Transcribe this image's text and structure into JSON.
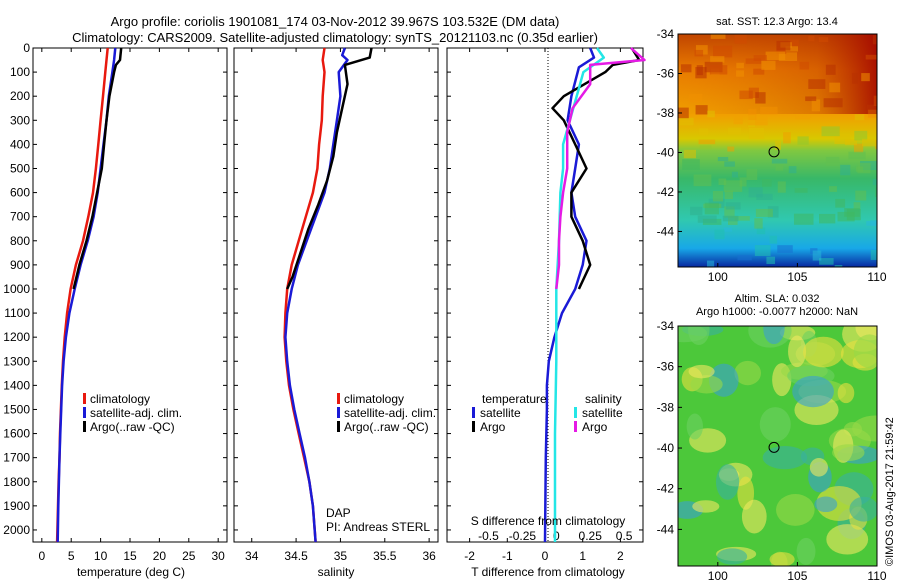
{
  "header": {
    "title_line1": "Argo profile: coriolis 1901081_174 03-Nov-2012 39.967S 103.532E (DM data)",
    "title_line2": "Climatology: CARS2009. Satellite-adjusted climatology: synTS_20121103.nc (0.35d earlier)"
  },
  "colors": {
    "climatology": "#e8190f",
    "satellite": "#1a1ad6",
    "argo": "#000000",
    "salinity_satellite": "#23e6e6",
    "salinity_argo": "#e51ae5"
  },
  "depth_axis": {
    "ylim": [
      0,
      2050
    ],
    "ticks": [
      "0",
      "100",
      "200",
      "300",
      "400",
      "500",
      "600",
      "700",
      "800",
      "900",
      "1000",
      "1100",
      "1200",
      "1300",
      "1400",
      "1500",
      "1600",
      "1700",
      "1800",
      "1900",
      "2000"
    ]
  },
  "chart_data": [
    {
      "id": "temperature",
      "type": "line",
      "xlabel": "temperature (deg C)",
      "xlim": [
        -1.5,
        31.5
      ],
      "xticks": [
        "0",
        "5",
        "10",
        "15",
        "20",
        "25",
        "30"
      ],
      "legend": {
        "placement": "bottom-right",
        "entries": [
          "climatology",
          "satellite-adj. clim.",
          "Argo(..raw -QC)"
        ]
      },
      "series": [
        {
          "name": "climatology",
          "color": "#e8190f",
          "points": [
            [
              11.2,
              0
            ],
            [
              11.0,
              50
            ],
            [
              10.8,
              100
            ],
            [
              10.4,
              200
            ],
            [
              10.0,
              300
            ],
            [
              9.6,
              400
            ],
            [
              9.2,
              500
            ],
            [
              8.7,
              600
            ],
            [
              7.9,
              700
            ],
            [
              7.0,
              800
            ],
            [
              5.8,
              900
            ],
            [
              4.9,
              1000
            ],
            [
              4.3,
              1100
            ],
            [
              3.9,
              1200
            ],
            [
              3.6,
              1300
            ],
            [
              3.4,
              1400
            ],
            [
              3.25,
              1500
            ],
            [
              3.1,
              1600
            ],
            [
              3.0,
              1700
            ],
            [
              2.85,
              1800
            ],
            [
              2.75,
              1900
            ],
            [
              2.6,
              2050
            ]
          ]
        },
        {
          "name": "satellite-adj. clim.",
          "color": "#1a1ad6",
          "points": [
            [
              12.5,
              0
            ],
            [
              12.3,
              50
            ],
            [
              12.0,
              100
            ],
            [
              11.4,
              200
            ],
            [
              11.0,
              300
            ],
            [
              10.5,
              400
            ],
            [
              10.0,
              500
            ],
            [
              9.5,
              600
            ],
            [
              8.8,
              700
            ],
            [
              7.8,
              800
            ],
            [
              6.6,
              900
            ],
            [
              5.6,
              1000
            ],
            [
              4.7,
              1100
            ],
            [
              4.1,
              1200
            ],
            [
              3.7,
              1300
            ],
            [
              3.45,
              1400
            ],
            [
              3.3,
              1500
            ],
            [
              3.15,
              1600
            ],
            [
              3.0,
              1700
            ],
            [
              2.9,
              1800
            ],
            [
              2.8,
              1900
            ],
            [
              2.7,
              2050
            ]
          ]
        },
        {
          "name": "Argo(..raw -QC)",
          "color": "#000000",
          "points": [
            [
              13.5,
              0
            ],
            [
              13.3,
              50
            ],
            [
              12.6,
              70
            ],
            [
              12.3,
              100
            ],
            [
              11.5,
              200
            ],
            [
              11.0,
              300
            ],
            [
              10.6,
              400
            ],
            [
              10.2,
              500
            ],
            [
              9.4,
              600
            ],
            [
              8.6,
              700
            ],
            [
              7.6,
              800
            ],
            [
              6.4,
              900
            ],
            [
              5.4,
              1000
            ]
          ]
        }
      ]
    },
    {
      "id": "salinity",
      "type": "line",
      "xlabel": "salinity",
      "xlim": [
        33.8,
        36.1
      ],
      "xticks": [
        "34",
        "34.5",
        "35",
        "35.5",
        "36"
      ],
      "legend": {
        "placement": "bottom-right",
        "entries": [
          "climatology",
          "satellite-adj. clim.",
          "Argo(..raw -QC)"
        ]
      },
      "annotations": [
        "DAP",
        "PI: Andreas STERL"
      ],
      "series": [
        {
          "name": "climatology",
          "color": "#e8190f",
          "points": [
            [
              34.82,
              0
            ],
            [
              34.8,
              50
            ],
            [
              34.82,
              100
            ],
            [
              34.8,
              200
            ],
            [
              34.79,
              300
            ],
            [
              34.76,
              400
            ],
            [
              34.74,
              500
            ],
            [
              34.69,
              600
            ],
            [
              34.61,
              700
            ],
            [
              34.53,
              800
            ],
            [
              34.45,
              900
            ],
            [
              34.4,
              1000
            ],
            [
              34.38,
              1100
            ],
            [
              34.37,
              1200
            ],
            [
              34.39,
              1300
            ],
            [
              34.42,
              1400
            ],
            [
              34.47,
              1500
            ],
            [
              34.53,
              1600
            ],
            [
              34.59,
              1700
            ],
            [
              34.65,
              1800
            ],
            [
              34.69,
              1900
            ],
            [
              34.72,
              2050
            ]
          ]
        },
        {
          "name": "satellite-adj. clim.",
          "color": "#1a1ad6",
          "points": [
            [
              35.05,
              0
            ],
            [
              35.02,
              30
            ],
            [
              35.08,
              50
            ],
            [
              34.98,
              100
            ],
            [
              35.0,
              200
            ],
            [
              34.96,
              300
            ],
            [
              34.92,
              400
            ],
            [
              34.88,
              500
            ],
            [
              34.82,
              600
            ],
            [
              34.72,
              700
            ],
            [
              34.62,
              800
            ],
            [
              34.52,
              900
            ],
            [
              34.45,
              1000
            ],
            [
              34.4,
              1100
            ],
            [
              34.38,
              1200
            ],
            [
              34.4,
              1300
            ],
            [
              34.43,
              1400
            ],
            [
              34.48,
              1500
            ],
            [
              34.54,
              1600
            ],
            [
              34.6,
              1700
            ],
            [
              34.65,
              1800
            ],
            [
              34.69,
              1900
            ],
            [
              34.72,
              2050
            ]
          ]
        },
        {
          "name": "Argo(..raw -QC)",
          "color": "#000000",
          "points": [
            [
              35.35,
              0
            ],
            [
              35.33,
              40
            ],
            [
              35.05,
              70
            ],
            [
              35.08,
              150
            ],
            [
              35.02,
              250
            ],
            [
              34.96,
              350
            ],
            [
              34.92,
              450
            ],
            [
              34.85,
              550
            ],
            [
              34.75,
              650
            ],
            [
              34.64,
              750
            ],
            [
              34.55,
              850
            ],
            [
              34.46,
              950
            ],
            [
              34.4,
              1000
            ]
          ]
        }
      ]
    },
    {
      "id": "difference",
      "type": "line",
      "xlabel": "T difference from climatology",
      "xlabel_top": "S difference from climatology",
      "xlim": [
        -2.6,
        2.6
      ],
      "xticks": [
        "-2",
        "-1",
        "0",
        "1",
        "2"
      ],
      "xticks_top": [
        "-0.5",
        "-0.25",
        "0",
        "0.25",
        "0.5"
      ],
      "legend": {
        "placement": "bottom",
        "headers": [
          "temperature",
          "salinity"
        ],
        "entries": [
          "satellite",
          "Argo",
          "satellite",
          "Argo"
        ]
      },
      "series": [
        {
          "name": "satellite",
          "quantity": "temperature",
          "color": "#1a1ad6",
          "points": [
            [
              1.2,
              0
            ],
            [
              1.3,
              40
            ],
            [
              0.9,
              80
            ],
            [
              0.7,
              200
            ],
            [
              0.6,
              300
            ],
            [
              0.9,
              400
            ],
            [
              0.8,
              500
            ],
            [
              0.7,
              600
            ],
            [
              0.8,
              700
            ],
            [
              1.1,
              800
            ],
            [
              1.0,
              900
            ],
            [
              0.8,
              1000
            ],
            [
              0.45,
              1100
            ],
            [
              0.25,
              1200
            ],
            [
              0.1,
              1300
            ],
            [
              0.05,
              1400
            ],
            [
              0.05,
              1500
            ],
            [
              0.02,
              1700
            ],
            [
              0.0,
              2050
            ]
          ]
        },
        {
          "name": "Argo",
          "quantity": "temperature",
          "color": "#000000",
          "points": [
            [
              2.3,
              0
            ],
            [
              2.5,
              50
            ],
            [
              1.8,
              70
            ],
            [
              1.6,
              100
            ],
            [
              0.5,
              200
            ],
            [
              0.2,
              250
            ],
            [
              0.5,
              300
            ],
            [
              0.8,
              400
            ],
            [
              1.1,
              500
            ],
            [
              0.7,
              600
            ],
            [
              0.7,
              700
            ],
            [
              1.0,
              800
            ],
            [
              1.2,
              900
            ],
            [
              0.9,
              1000
            ]
          ]
        },
        {
          "name": "satellite",
          "quantity": "salinity",
          "color": "#23e6e6",
          "points": [
            [
              0.3,
              0
            ],
            [
              0.35,
              40
            ],
            [
              0.2,
              100
            ],
            [
              0.15,
              200
            ],
            [
              0.1,
              300
            ],
            [
              0.05,
              400
            ],
            [
              0.05,
              500
            ],
            [
              0.03,
              600
            ],
            [
              0.02,
              800
            ],
            [
              0.0,
              1000
            ],
            [
              0.0,
              1300
            ],
            [
              -0.01,
              1600
            ],
            [
              -0.01,
              2050
            ]
          ]
        },
        {
          "name": "Argo",
          "quantity": "salinity",
          "color": "#e51ae5",
          "points": [
            [
              0.55,
              0
            ],
            [
              0.65,
              50
            ],
            [
              0.25,
              70
            ],
            [
              0.25,
              150
            ],
            [
              0.12,
              250
            ],
            [
              0.08,
              350
            ],
            [
              0.08,
              500
            ],
            [
              0.05,
              600
            ],
            [
              0.03,
              700
            ],
            [
              0.02,
              800
            ],
            [
              0.02,
              900
            ],
            [
              0.0,
              1000
            ]
          ]
        }
      ]
    },
    {
      "id": "sst-map",
      "type": "heatmap",
      "title": "sat. SST: 12.3 Argo: 13.4",
      "xlim": [
        97.5,
        110
      ],
      "ylim": [
        -45.8,
        -34
      ],
      "xticks": [
        "100",
        "105",
        "110"
      ],
      "yticks": [
        "-34",
        "-36",
        "-38",
        "-40",
        "-42",
        "-44"
      ],
      "marker": {
        "lon": 103.532,
        "lat": -39.967
      }
    },
    {
      "id": "sla-map",
      "type": "heatmap",
      "title_line1": "Altim. SLA: 0.032",
      "title_line2": "Argo h1000: -0.0077 h2000: NaN",
      "xlim": [
        97.5,
        110
      ],
      "ylim": [
        -45.8,
        -34
      ],
      "xticks": [
        "100",
        "105",
        "110"
      ],
      "yticks": [
        "-34",
        "-36",
        "-38",
        "-40",
        "-42",
        "-44"
      ],
      "marker": {
        "lon": 103.532,
        "lat": -39.967
      }
    }
  ],
  "credit": "©IMOS 03-Aug-2017 21:59:42"
}
